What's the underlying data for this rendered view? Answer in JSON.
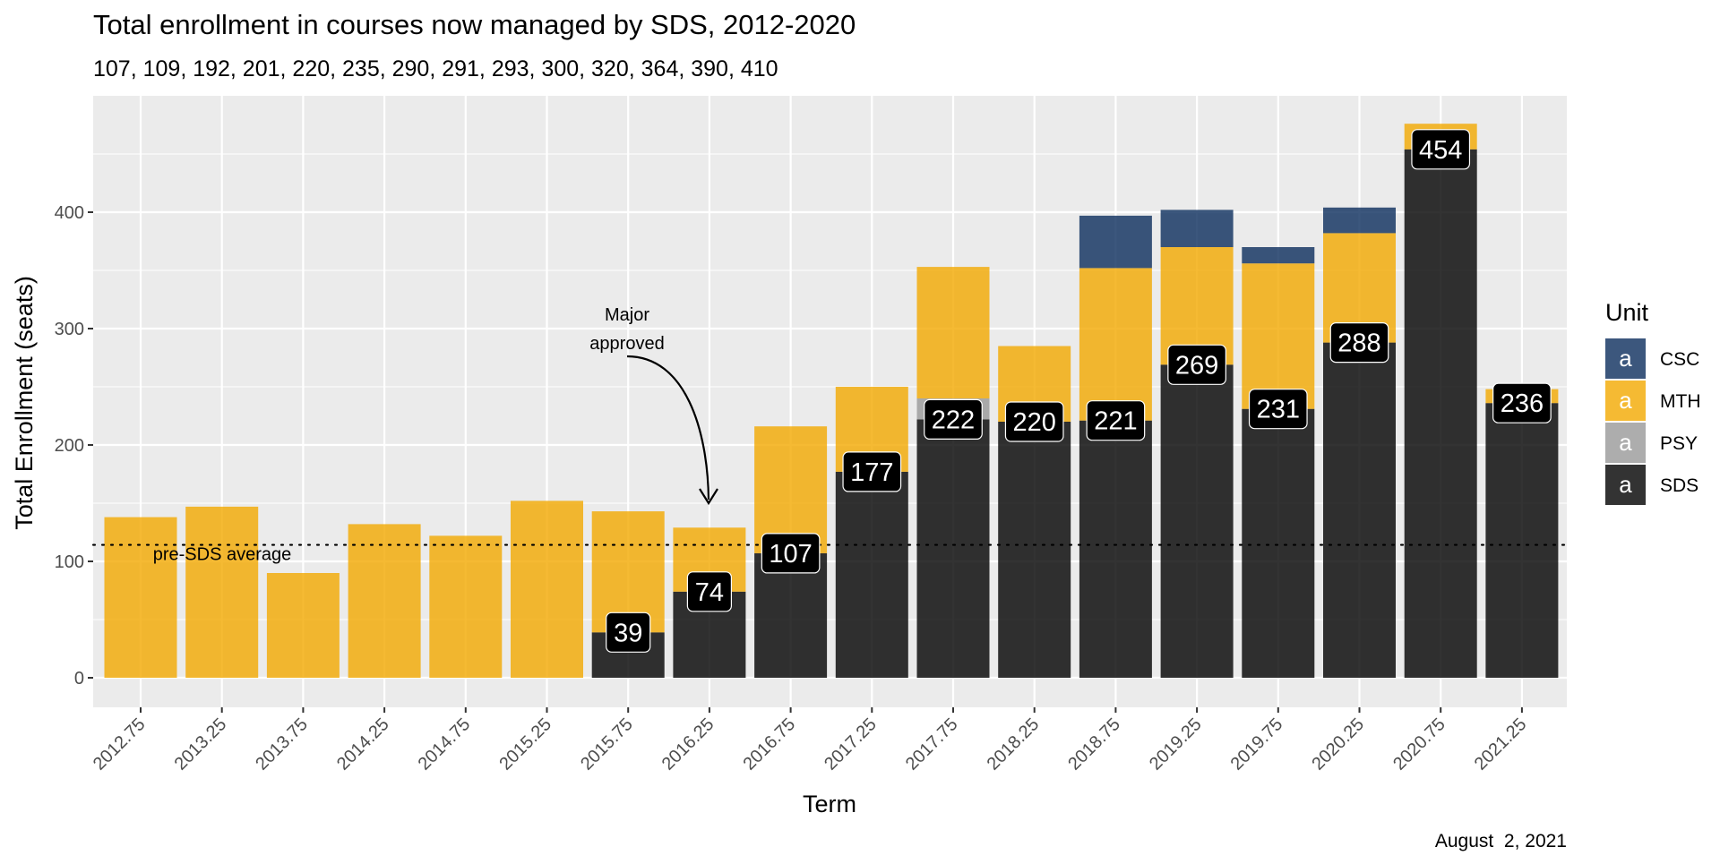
{
  "chart_data": {
    "type": "bar",
    "stacked": true,
    "title": "Total enrollment in courses now managed by SDS, 2012-2020",
    "subtitle": "107, 109, 192, 201, 220, 235, 290, 291, 293, 300, 320, 364, 390, 410",
    "xlabel": "Term",
    "ylabel": "Total Enrollment (seats)",
    "caption": "August  2, 2021",
    "categories": [
      "2012.75",
      "2013.25",
      "2013.75",
      "2014.25",
      "2014.75",
      "2015.25",
      "2015.75",
      "2016.25",
      "2016.75",
      "2017.25",
      "2017.75",
      "2018.25",
      "2018.75",
      "2019.25",
      "2019.75",
      "2020.25",
      "2020.75",
      "2021.25"
    ],
    "series": [
      {
        "name": "SDS",
        "color": "#000000",
        "values": [
          0,
          0,
          0,
          0,
          0,
          0,
          39,
          74,
          107,
          177,
          222,
          220,
          221,
          269,
          231,
          288,
          454,
          236
        ]
      },
      {
        "name": "PSY",
        "color": "#999999",
        "values": [
          0,
          0,
          0,
          0,
          0,
          0,
          0,
          0,
          0,
          0,
          18,
          0,
          0,
          0,
          0,
          0,
          0,
          0
        ]
      },
      {
        "name": "MTH",
        "color": "#f2a900",
        "values": [
          138,
          147,
          90,
          132,
          122,
          152,
          104,
          55,
          109,
          73,
          113,
          65,
          131,
          101,
          125,
          94,
          22,
          12
        ]
      },
      {
        "name": "CSC",
        "color": "#0b2d5c",
        "values": [
          0,
          0,
          0,
          0,
          0,
          0,
          0,
          0,
          0,
          0,
          0,
          0,
          45,
          32,
          14,
          22,
          0,
          0
        ]
      }
    ],
    "bar_labels": [
      null,
      null,
      null,
      null,
      null,
      null,
      "39",
      "74",
      "107",
      "177",
      "222",
      "220",
      "221",
      "269",
      "231",
      "288",
      "454",
      "236"
    ],
    "ylim": [
      0,
      499
    ],
    "yticks": [
      0,
      100,
      200,
      300,
      400
    ],
    "reference_line": {
      "value": 114.2,
      "style": "dotted",
      "label": "pre-SDS average"
    },
    "annotation": {
      "text_line1": "Major",
      "text_line2": "approved",
      "points_to": "2016.25"
    },
    "legend": {
      "title": "Unit",
      "placement": "right",
      "key_glyph": "a",
      "entries": [
        "CSC",
        "MTH",
        "PSY",
        "SDS"
      ]
    },
    "grid": true
  }
}
